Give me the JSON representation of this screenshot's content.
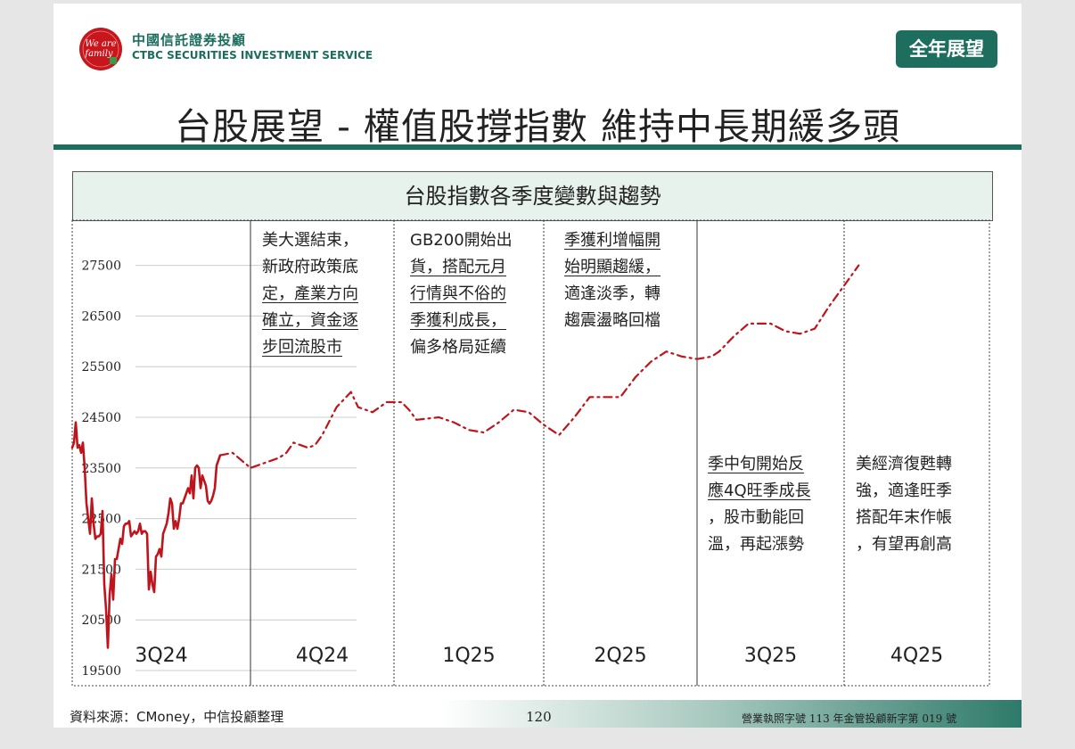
{
  "header": {
    "company_cn": "中國信託證券投顧",
    "company_en": "CTBC SECURITIES INVESTMENT SERVICE",
    "logo_text": "We are family",
    "tag": "全年展望"
  },
  "title": "台股展望 - 權值股撐指數 維持中長期緩多頭",
  "colors": {
    "accent": "#1e6e5f",
    "series": "#c0141c",
    "panel_bg": "#e8f2ec"
  },
  "chart_data": {
    "type": "line",
    "title": "台股指數各季度變數與趨勢",
    "y_ticks": [
      27500,
      26500,
      25500,
      24500,
      23500,
      22500,
      21500,
      20500,
      19500
    ],
    "ylim": [
      19500,
      28200
    ],
    "x_segments": [
      "3Q24",
      "4Q24",
      "1Q25",
      "2Q25",
      "3Q25",
      "4Q25"
    ],
    "grid": "horizontal lines",
    "series": [
      {
        "style": "solid",
        "points": [
          [
            0.0,
            23900
          ],
          [
            0.01,
            24000
          ],
          [
            0.02,
            24400
          ],
          [
            0.03,
            23900
          ],
          [
            0.04,
            23950
          ],
          [
            0.05,
            23800
          ],
          [
            0.06,
            24000
          ],
          [
            0.07,
            23500
          ],
          [
            0.08,
            22800
          ],
          [
            0.09,
            22500
          ],
          [
            0.1,
            22200
          ],
          [
            0.11,
            22900
          ],
          [
            0.12,
            22400
          ],
          [
            0.13,
            22100
          ],
          [
            0.14,
            22150
          ],
          [
            0.15,
            22150
          ],
          [
            0.16,
            22200
          ],
          [
            0.17,
            22650
          ],
          [
            0.18,
            21200
          ],
          [
            0.19,
            20700
          ],
          [
            0.2,
            19950
          ],
          [
            0.21,
            21000
          ],
          [
            0.22,
            21400
          ],
          [
            0.23,
            20900
          ],
          [
            0.24,
            21700
          ],
          [
            0.25,
            21700
          ],
          [
            0.26,
            21900
          ],
          [
            0.27,
            22100
          ],
          [
            0.28,
            22000
          ],
          [
            0.29,
            22350
          ],
          [
            0.3,
            22400
          ],
          [
            0.31,
            22400
          ],
          [
            0.32,
            22450
          ],
          [
            0.33,
            22150
          ],
          [
            0.34,
            22200
          ],
          [
            0.35,
            22250
          ],
          [
            0.36,
            22200
          ],
          [
            0.37,
            22250
          ],
          [
            0.38,
            22400
          ],
          [
            0.39,
            22200
          ],
          [
            0.4,
            22250
          ],
          [
            0.41,
            22250
          ],
          [
            0.42,
            22200
          ],
          [
            0.43,
            21100
          ],
          [
            0.44,
            21450
          ],
          [
            0.45,
            21200
          ],
          [
            0.46,
            21050
          ],
          [
            0.47,
            21750
          ],
          [
            0.48,
            21800
          ],
          [
            0.49,
            21900
          ],
          [
            0.5,
            21750
          ],
          [
            0.51,
            22200
          ],
          [
            0.52,
            22300
          ],
          [
            0.53,
            22400
          ],
          [
            0.54,
            22600
          ],
          [
            0.55,
            22900
          ],
          [
            0.56,
            22800
          ],
          [
            0.57,
            22300
          ],
          [
            0.58,
            22450
          ],
          [
            0.59,
            22300
          ],
          [
            0.6,
            22500
          ],
          [
            0.61,
            22800
          ],
          [
            0.62,
            22800
          ],
          [
            0.63,
            22900
          ],
          [
            0.64,
            23000
          ],
          [
            0.65,
            23100
          ],
          [
            0.66,
            23000
          ],
          [
            0.67,
            23350
          ],
          [
            0.68,
            22900
          ],
          [
            0.69,
            23500
          ],
          [
            0.7,
            23550
          ],
          [
            0.71,
            23500
          ],
          [
            0.72,
            23100
          ],
          [
            0.73,
            23350
          ],
          [
            0.74,
            23250
          ],
          [
            0.75,
            23150
          ],
          [
            0.76,
            22850
          ],
          [
            0.77,
            22800
          ],
          [
            0.78,
            22850
          ],
          [
            0.79,
            22950
          ],
          [
            0.8,
            23100
          ],
          [
            0.81,
            23550
          ],
          [
            0.82,
            23650
          ],
          [
            0.83,
            23750
          ]
        ]
      },
      {
        "style": "dash-dot",
        "points": [
          [
            0.83,
            23750
          ],
          [
            0.9,
            23800
          ],
          [
            1.0,
            23500
          ],
          [
            1.1,
            23600
          ],
          [
            1.2,
            23700
          ],
          [
            1.25,
            23800
          ],
          [
            1.3,
            24000
          ],
          [
            1.4,
            23900
          ],
          [
            1.45,
            23950
          ],
          [
            1.5,
            24150
          ],
          [
            1.6,
            24700
          ],
          [
            1.7,
            25000
          ],
          [
            1.75,
            24700
          ],
          [
            1.85,
            24600
          ],
          [
            1.95,
            24800
          ],
          [
            2.05,
            24800
          ],
          [
            2.1,
            24650
          ],
          [
            2.15,
            24450
          ],
          [
            2.3,
            24500
          ],
          [
            2.4,
            24400
          ],
          [
            2.5,
            24250
          ],
          [
            2.6,
            24200
          ],
          [
            2.7,
            24400
          ],
          [
            2.8,
            24650
          ],
          [
            2.9,
            24600
          ],
          [
            3.0,
            24350
          ],
          [
            3.05,
            24250
          ],
          [
            3.1,
            24150
          ],
          [
            3.2,
            24500
          ],
          [
            3.3,
            24900
          ],
          [
            3.4,
            24900
          ],
          [
            3.5,
            24900
          ],
          [
            3.6,
            25300
          ],
          [
            3.7,
            25600
          ],
          [
            3.8,
            25800
          ],
          [
            3.9,
            25700
          ],
          [
            4.0,
            25650
          ],
          [
            4.1,
            25700
          ],
          [
            4.15,
            25800
          ],
          [
            4.25,
            26100
          ],
          [
            4.35,
            26350
          ],
          [
            4.5,
            26350
          ],
          [
            4.6,
            26200
          ],
          [
            4.7,
            26150
          ],
          [
            4.8,
            26250
          ],
          [
            4.9,
            26700
          ],
          [
            5.0,
            27100
          ],
          [
            5.1,
            27500
          ]
        ]
      }
    ]
  },
  "annotations": [
    [
      "美大選結束，",
      "新政府政策底",
      "定，產業方向",
      "確立，資金逐",
      "步回流股市"
    ],
    [
      "GB200開始出",
      "貨，搭配元月",
      "行情與不俗的",
      "季獲利成長，",
      "偏多格局延續"
    ],
    [
      "季獲利增幅開",
      "始明顯趨緩，",
      "適逢淡季，轉",
      "趨震盪略回檔"
    ],
    [
      "季中旬開始反",
      "應4Q旺季成長",
      "，股市動能回",
      "溫，再起漲勢"
    ],
    [
      "美經濟復甦轉",
      "強，適逢旺季",
      "搭配年末作帳",
      "，有望再創高"
    ]
  ],
  "footer": {
    "source": "資料來源：CMoney，中信投顧整理",
    "page": "120",
    "license": "營業執照字號 113 年金管投顧新字第 019 號"
  }
}
